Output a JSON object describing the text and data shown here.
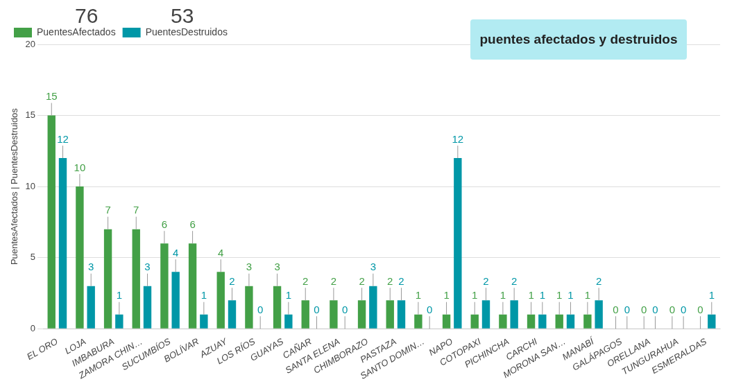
{
  "chart_data": {
    "type": "bar",
    "title": "puentes afectados y destruidos",
    "ylabel": "PuentesAfectados | PuentesDestruidos",
    "annotations": [
      "76",
      "53"
    ],
    "categories": [
      "EL ORO",
      "LOJA",
      "IMBABURA",
      "ZAMORA CHIN…",
      "SUCUMBÍOS",
      "BOLÍVAR",
      "AZUAY",
      "LOS RÍOS",
      "GUAYAS",
      "CAÑAR",
      "SANTA ELENA",
      "CHIMBORAZO",
      "PASTAZA",
      "SANTO DOMIN…",
      "NAPO",
      "COTOPAXI",
      "PICHINCHA",
      "CARCHI",
      "MORONA SAN…",
      "MANABÍ",
      "GALÁPAGOS",
      "ORELLANA",
      "TUNGURAHUA",
      "ESMERALDAS"
    ],
    "series": [
      {
        "name": "PuentesAfectados",
        "color": "#43a047",
        "values": [
          15,
          10,
          7,
          7,
          6,
          6,
          4,
          3,
          3,
          2,
          2,
          2,
          2,
          1,
          1,
          1,
          1,
          1,
          1,
          1,
          0,
          0,
          0,
          0
        ]
      },
      {
        "name": "PuentesDestruidos",
        "color": "#0097a7",
        "values": [
          12,
          3,
          1,
          3,
          4,
          1,
          2,
          0,
          1,
          0,
          0,
          3,
          2,
          0,
          12,
          2,
          2,
          1,
          1,
          2,
          0,
          0,
          0,
          1
        ]
      }
    ],
    "ylim": [
      0,
      20
    ],
    "yticks": [
      0,
      5,
      10,
      15,
      20
    ],
    "grid": "y",
    "legend": "top left",
    "data_labels": true
  }
}
